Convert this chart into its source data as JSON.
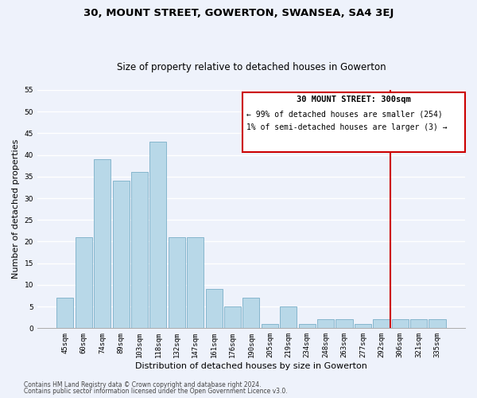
{
  "title": "30, MOUNT STREET, GOWERTON, SWANSEA, SA4 3EJ",
  "subtitle": "Size of property relative to detached houses in Gowerton",
  "xlabel": "Distribution of detached houses by size in Gowerton",
  "ylabel": "Number of detached properties",
  "bar_labels": [
    "45sqm",
    "60sqm",
    "74sqm",
    "89sqm",
    "103sqm",
    "118sqm",
    "132sqm",
    "147sqm",
    "161sqm",
    "176sqm",
    "190sqm",
    "205sqm",
    "219sqm",
    "234sqm",
    "248sqm",
    "263sqm",
    "277sqm",
    "292sqm",
    "306sqm",
    "321sqm",
    "335sqm"
  ],
  "bar_values": [
    7,
    21,
    39,
    34,
    36,
    43,
    21,
    21,
    9,
    5,
    7,
    1,
    5,
    1,
    2,
    2,
    1,
    2,
    2,
    2,
    2
  ],
  "bar_color": "#b8d8e8",
  "bar_edge_color": "#7aafc8",
  "background_color": "#eef2fb",
  "grid_color": "#ffffff",
  "ylim": [
    0,
    55
  ],
  "yticks": [
    0,
    5,
    10,
    15,
    20,
    25,
    30,
    35,
    40,
    45,
    50,
    55
  ],
  "vline_color": "#cc0000",
  "annotation_title": "30 MOUNT STREET: 300sqm",
  "annotation_line1": "← 99% of detached houses are smaller (254)",
  "annotation_line2": "1% of semi-detached houses are larger (3) →",
  "annotation_box_color": "#cc0000",
  "footnote_line1": "Contains HM Land Registry data © Crown copyright and database right 2024.",
  "footnote_line2": "Contains public sector information licensed under the Open Government Licence v3.0.",
  "title_fontsize": 9.5,
  "subtitle_fontsize": 8.5,
  "axis_label_fontsize": 8,
  "tick_fontsize": 6.5,
  "annotation_title_fontsize": 7.5,
  "annotation_text_fontsize": 7,
  "footnote_fontsize": 5.5
}
